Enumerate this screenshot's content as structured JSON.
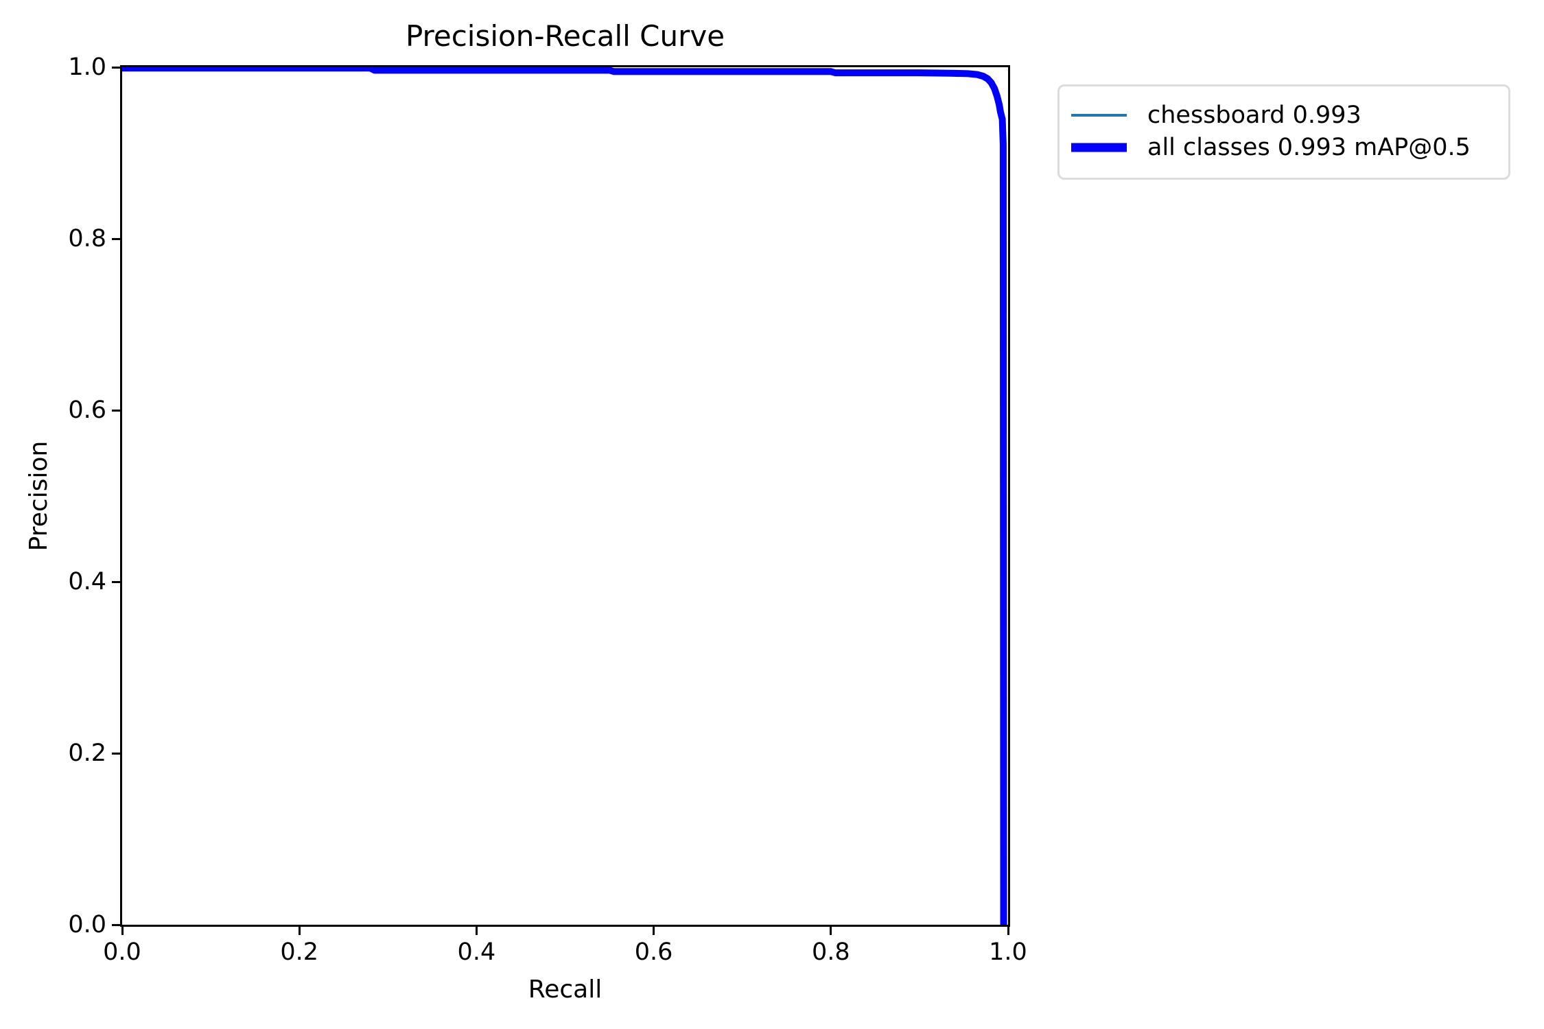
{
  "figure": {
    "background_color": "#ffffff",
    "text_color": "#000000"
  },
  "chart_data": {
    "type": "line",
    "title": "Precision-Recall Curve",
    "xlabel": "Recall",
    "ylabel": "Precision",
    "xlim": [
      0.0,
      1.0
    ],
    "ylim": [
      0.0,
      1.0
    ],
    "x_ticks": [
      "0.0",
      "0.2",
      "0.4",
      "0.6",
      "0.8",
      "1.0"
    ],
    "y_ticks": [
      "0.0",
      "0.2",
      "0.4",
      "0.6",
      "0.8",
      "1.0"
    ],
    "grid": false,
    "legend_position": "outside-upper-right",
    "series": [
      {
        "name": "chessboard 0.993",
        "color": "#1f77b4",
        "linewidth": 3.5,
        "points": [
          [
            0.0,
            0.999
          ],
          [
            0.28,
            0.999
          ],
          [
            0.285,
            0.9965
          ],
          [
            0.55,
            0.9965
          ],
          [
            0.555,
            0.995
          ],
          [
            0.8,
            0.995
          ],
          [
            0.805,
            0.9935
          ],
          [
            0.9,
            0.9935
          ],
          [
            0.935,
            0.993
          ],
          [
            0.955,
            0.9925
          ],
          [
            0.965,
            0.9915
          ],
          [
            0.972,
            0.9895
          ],
          [
            0.977,
            0.9865
          ],
          [
            0.981,
            0.982
          ],
          [
            0.9845,
            0.9755
          ],
          [
            0.9875,
            0.9665
          ],
          [
            0.99,
            0.9565
          ],
          [
            0.9915,
            0.9475
          ],
          [
            0.9925,
            0.9435
          ],
          [
            0.9935,
            0.9395
          ],
          [
            0.9945,
            0.91
          ],
          [
            0.995,
            0.0
          ]
        ]
      },
      {
        "name": "all classes 0.993 mAP@0.5",
        "color": "#0000ff",
        "linewidth": 10,
        "points": [
          [
            0.0,
            0.999
          ],
          [
            0.28,
            0.999
          ],
          [
            0.285,
            0.9965
          ],
          [
            0.55,
            0.9965
          ],
          [
            0.555,
            0.995
          ],
          [
            0.8,
            0.995
          ],
          [
            0.805,
            0.9935
          ],
          [
            0.9,
            0.9935
          ],
          [
            0.935,
            0.993
          ],
          [
            0.955,
            0.9925
          ],
          [
            0.965,
            0.9915
          ],
          [
            0.972,
            0.9895
          ],
          [
            0.977,
            0.9865
          ],
          [
            0.981,
            0.982
          ],
          [
            0.9845,
            0.9755
          ],
          [
            0.9875,
            0.9665
          ],
          [
            0.99,
            0.9565
          ],
          [
            0.9915,
            0.9475
          ],
          [
            0.9925,
            0.9435
          ],
          [
            0.9935,
            0.9395
          ],
          [
            0.9945,
            0.91
          ],
          [
            0.995,
            0.0
          ]
        ]
      }
    ]
  },
  "legend": {
    "entries": [
      {
        "label": "chessboard 0.993",
        "color": "#1f77b4",
        "sample_thickness": 4
      },
      {
        "label": "all classes 0.993 mAP@0.5",
        "color": "#0000ff",
        "sample_thickness": 13
      }
    ],
    "border_color": "#dcdcdc"
  }
}
